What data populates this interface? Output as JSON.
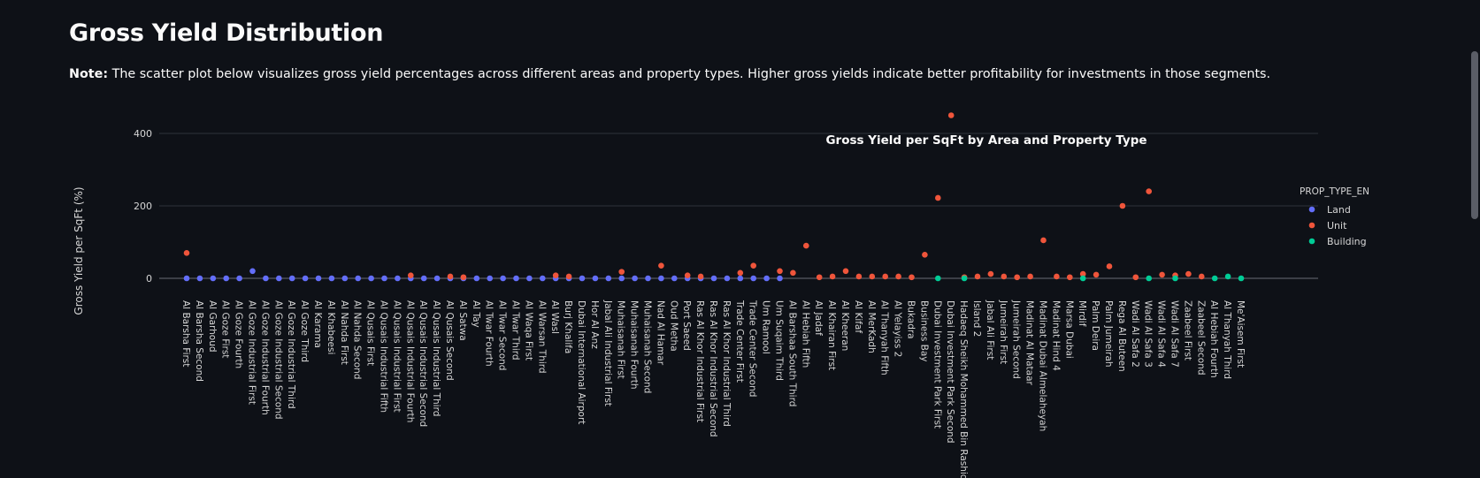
{
  "page": {
    "title": "Gross Yield Distribution",
    "note_label": "Note:",
    "note_text": " The scatter plot below visualizes gross yield percentages across different areas and property types. Higher gross yields indicate better profitability for investments in those segments."
  },
  "colors": {
    "background": "#0e1117",
    "Land": "#636efa",
    "Unit": "#ef553b",
    "Building": "#00cc96",
    "grid": "#2e323b"
  },
  "chart_data": {
    "type": "scatter",
    "title": "Gross Yield per SqFt by Area and Property Type",
    "ylabel": "Gross Yield per SqFt (%)",
    "xlabel": "",
    "ylim": [
      -60,
      500
    ],
    "yticks": [
      0,
      200,
      400
    ],
    "grid": true,
    "legend_title": "PROP_TYPE_EN",
    "legend_position": "right",
    "categories": [
      "Al Barsha First",
      "Al Barsha Second",
      "Al Garhoud",
      "Al Goze First",
      "Al Goze Fourth",
      "Al Goze Industrial First",
      "Al Goze Industrial Fourth",
      "Al Goze Industrial Second",
      "Al Goze Industrial Third",
      "Al Goze Third",
      "Al Karama",
      "Al Khabeesi",
      "Al Nahda First",
      "Al Nahda Second",
      "Al Qusais First",
      "Al Qusais Industrial Fifth",
      "Al Qusais Industrial First",
      "Al Qusais Industrial Fourth",
      "Al Qusais Industrial Second",
      "Al Qusais Industrial Third",
      "Al Qusais Second",
      "Al Satwa",
      "Al Tay",
      "Al Twar Fourth",
      "Al Twar Second",
      "Al Twar Third",
      "Al Waqa First",
      "Al Warsan Third",
      "Al Wasl",
      "Burj Khalifa",
      "Dubai International Airport",
      "Hor Al Anz",
      "Jabal Ali Industrial First",
      "Muhaisanah First",
      "Muhaisanah Fourth",
      "Muhaisanah Second",
      "Nad Al Hamar",
      "Oud Metha",
      "Port Saeed",
      "Ras Al Khor Industrial First",
      "Ras Al Khor Industrial Second",
      "Ras Al Khor Industrial Third",
      "Trade Center First",
      "Trade Center Second",
      "Um Ramool",
      "Um Suqaim Third",
      "Al Barshaa South Third",
      "Al Hebiah Fifth",
      "Al Jadaf",
      "Al Khairan First",
      "Al Kheeran",
      "Al Kifaf",
      "Al MerKadh",
      "Al Thanyah Fifth",
      "Al Yelayiss 2",
      "Bukadra",
      "Business Bay",
      "Dubai Investment Park First",
      "Dubai Investment Park Second",
      "Hadaeq Sheikh Mohammed Bin Rashid",
      "Island 2",
      "Jabal Ali First",
      "Jumeirah First",
      "Jumeirah Second",
      "Madinat Al Mataar",
      "Madinat Dubai Almelaheyah",
      "Madinat Hind 4",
      "Marsa Dubai",
      "Mirdif",
      "Palm Deira",
      "Palm Jumeirah",
      "Rega Al Buteen",
      "Wadi Al Safa 2",
      "Wadi Al Safa 3",
      "Wadi Al Safa 4",
      "Wadi Al Safa 7",
      "Zaabeel First",
      "Zaabeel Second",
      "Al Hebiah Fourth",
      "Al Thanyah Third",
      "Me'Aisem First"
    ],
    "series": [
      {
        "name": "Land",
        "points": [
          [
            "Al Barsha First",
            0
          ],
          [
            "Al Barsha Second",
            0
          ],
          [
            "Al Garhoud",
            0
          ],
          [
            "Al Goze First",
            0
          ],
          [
            "Al Goze Fourth",
            0
          ],
          [
            "Al Goze Industrial First",
            20
          ],
          [
            "Al Goze Industrial Fourth",
            0
          ],
          [
            "Al Goze Industrial Second",
            0
          ],
          [
            "Al Goze Industrial Third",
            0
          ],
          [
            "Al Goze Third",
            0
          ],
          [
            "Al Karama",
            0
          ],
          [
            "Al Khabeesi",
            0
          ],
          [
            "Al Nahda First",
            0
          ],
          [
            "Al Nahda Second",
            0
          ],
          [
            "Al Qusais First",
            0
          ],
          [
            "Al Qusais Industrial Fifth",
            0
          ],
          [
            "Al Qusais Industrial First",
            0
          ],
          [
            "Al Qusais Industrial Fourth",
            0
          ],
          [
            "Al Qusais Industrial Second",
            0
          ],
          [
            "Al Qusais Industrial Third",
            0
          ],
          [
            "Al Qusais Second",
            0
          ],
          [
            "Al Satwa",
            0
          ],
          [
            "Al Tay",
            0
          ],
          [
            "Al Twar Fourth",
            0
          ],
          [
            "Al Twar Second",
            0
          ],
          [
            "Al Twar Third",
            0
          ],
          [
            "Al Waqa First",
            0
          ],
          [
            "Al Warsan Third",
            0
          ],
          [
            "Al Wasl",
            0
          ],
          [
            "Burj Khalifa",
            0
          ],
          [
            "Dubai International Airport",
            0
          ],
          [
            "Hor Al Anz",
            0
          ],
          [
            "Jabal Ali Industrial First",
            0
          ],
          [
            "Muhaisanah First",
            0
          ],
          [
            "Muhaisanah Fourth",
            0
          ],
          [
            "Muhaisanah Second",
            0
          ],
          [
            "Nad Al Hamar",
            0
          ],
          [
            "Oud Metha",
            0
          ],
          [
            "Port Saeed",
            0
          ],
          [
            "Ras Al Khor Industrial First",
            0
          ],
          [
            "Ras Al Khor Industrial Second",
            0
          ],
          [
            "Ras Al Khor Industrial Third",
            0
          ],
          [
            "Trade Center First",
            0
          ],
          [
            "Trade Center Second",
            0
          ],
          [
            "Um Ramool",
            0
          ],
          [
            "Um Suqaim Third",
            0
          ]
        ]
      },
      {
        "name": "Unit",
        "points": [
          [
            "Al Barsha First",
            70
          ],
          [
            "Al Qusais Industrial Fourth",
            8
          ],
          [
            "Al Qusais Second",
            5
          ],
          [
            "Al Satwa",
            3
          ],
          [
            "Al Wasl",
            8
          ],
          [
            "Burj Khalifa",
            5
          ],
          [
            "Muhaisanah First",
            18
          ],
          [
            "Nad Al Hamar",
            35
          ],
          [
            "Port Saeed",
            8
          ],
          [
            "Ras Al Khor Industrial First",
            5
          ],
          [
            "Trade Center First",
            15
          ],
          [
            "Trade Center Second",
            35
          ],
          [
            "Um Suqaim Third",
            20
          ],
          [
            "Al Barshaa South Third",
            15
          ],
          [
            "Al Hebiah Fifth",
            90
          ],
          [
            "Al Jadaf",
            3
          ],
          [
            "Al Khairan First",
            5
          ],
          [
            "Al Kheeran",
            20
          ],
          [
            "Al Kifaf",
            5
          ],
          [
            "Al MerKadh",
            5
          ],
          [
            "Al Thanyah Fifth",
            5
          ],
          [
            "Al Yelayiss 2",
            5
          ],
          [
            "Bukadra",
            3
          ],
          [
            "Business Bay",
            65
          ],
          [
            "Dubai Investment Park First",
            222
          ],
          [
            "Dubai Investment Park Second",
            450
          ],
          [
            "Hadaeq Sheikh Mohammed Bin Rashid",
            3
          ],
          [
            "Island 2",
            5
          ],
          [
            "Jabal Ali First",
            12
          ],
          [
            "Jumeirah First",
            5
          ],
          [
            "Jumeirah Second",
            3
          ],
          [
            "Madinat Al Mataar",
            5
          ],
          [
            "Madinat Dubai Almelaheyah",
            105
          ],
          [
            "Madinat Hind 4",
            5
          ],
          [
            "Marsa Dubai",
            3
          ],
          [
            "Mirdif",
            12
          ],
          [
            "Palm Deira",
            10
          ],
          [
            "Palm Jumeirah",
            33
          ],
          [
            "Rega Al Buteen",
            200
          ],
          [
            "Wadi Al Safa 2",
            3
          ],
          [
            "Wadi Al Safa 3",
            240
          ],
          [
            "Wadi Al Safa 4",
            10
          ],
          [
            "Wadi Al Safa 7",
            8
          ],
          [
            "Zaabeel First",
            12
          ],
          [
            "Zaabeel Second",
            5
          ]
        ]
      },
      {
        "name": "Building",
        "points": [
          [
            "Dubai Investment Park First",
            0
          ],
          [
            "Hadaeq Sheikh Mohammed Bin Rashid",
            0
          ],
          [
            "Mirdif",
            0
          ],
          [
            "Wadi Al Safa 3",
            0
          ],
          [
            "Wadi Al Safa 7",
            0
          ],
          [
            "Al Hebiah Fourth",
            0
          ],
          [
            "Al Thanyah Third",
            5
          ],
          [
            "Me'Aisem First",
            0
          ]
        ]
      }
    ]
  }
}
